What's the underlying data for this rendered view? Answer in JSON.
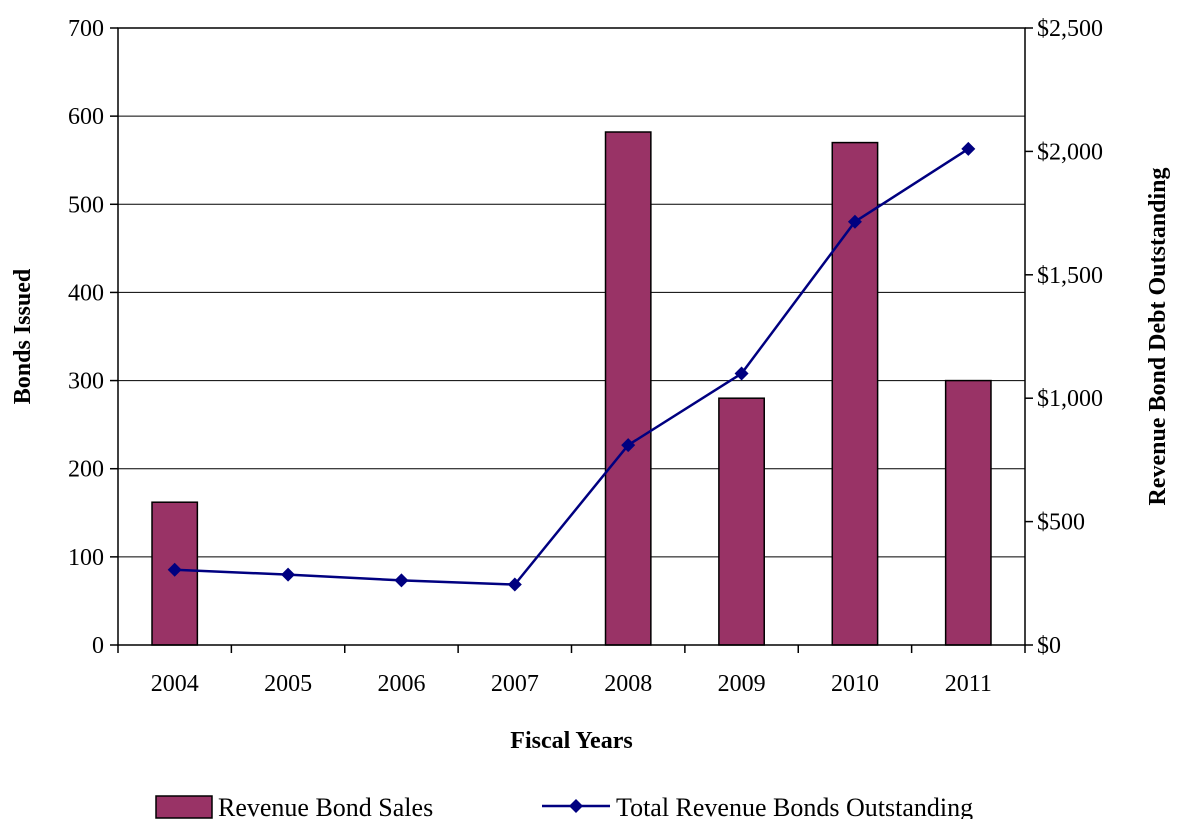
{
  "chart_data": {
    "type": "bar",
    "title": "",
    "xlabel": "Fiscal Years",
    "ylabel": "Bonds Issued",
    "y2label": "Revenue Bond Debt Outstanding",
    "categories": [
      "2004",
      "2005",
      "2006",
      "2007",
      "2008",
      "2009",
      "2010",
      "2011"
    ],
    "ylim": [
      0,
      700
    ],
    "y_ticks": [
      0,
      100,
      200,
      300,
      400,
      500,
      600,
      700
    ],
    "y_tick_labels": [
      "0",
      "100",
      "200",
      "300",
      "400",
      "500",
      "600",
      "700"
    ],
    "y2lim": [
      0,
      2500
    ],
    "y2_ticks": [
      0,
      500,
      1000,
      1500,
      2000,
      2500
    ],
    "y2_tick_labels": [
      "$0",
      "$500",
      "$1,000",
      "$1,500",
      "$2,000",
      "$2,500"
    ],
    "grid": true,
    "legend_position": "bottom",
    "series": [
      {
        "name": "Revenue Bond Sales",
        "type": "bar",
        "axis": "left",
        "color": "#993366",
        "values": [
          162,
          0,
          0,
          0,
          582,
          280,
          570,
          300
        ]
      },
      {
        "name": "Total Revenue Bonds Outstanding",
        "type": "line",
        "axis": "right",
        "color": "#000080",
        "marker": "diamond",
        "values": [
          305,
          285,
          262,
          245,
          810,
          1100,
          1715,
          2010
        ]
      }
    ]
  }
}
